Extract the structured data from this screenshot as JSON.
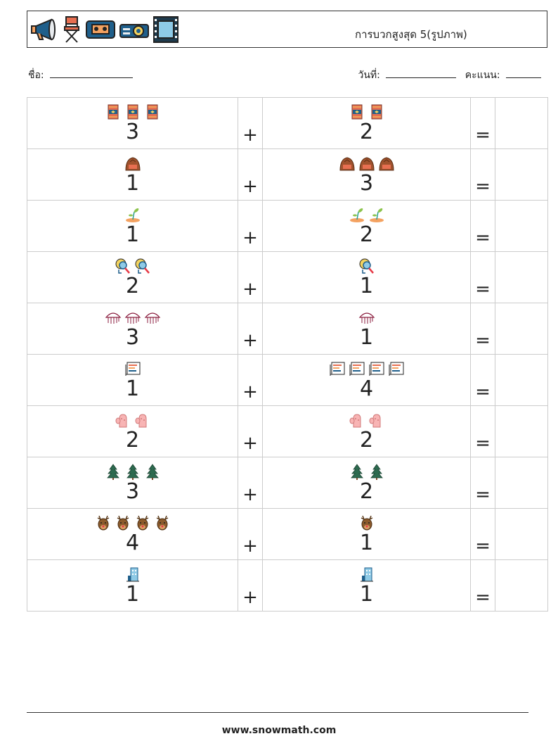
{
  "header": {
    "title": "การบวกสูงสุด 5(รูปภาพ)",
    "icons": [
      "megaphone-icon",
      "directors-chair-icon",
      "videocassette-icon",
      "projector-icon",
      "film-frame-icon"
    ]
  },
  "info": {
    "name_label": "ชื่อ:",
    "date_label": "วันที่:",
    "score_label": "คะแนน:"
  },
  "operators": {
    "plus": "+",
    "equals": "="
  },
  "problems": [
    {
      "a": "3",
      "b": "2",
      "icon": "rug-icon"
    },
    {
      "a": "1",
      "b": "3",
      "icon": "hill-icon"
    },
    {
      "a": "1",
      "b": "2",
      "icon": "sprout-icon"
    },
    {
      "a": "2",
      "b": "1",
      "icon": "magnifier-bulb-icon"
    },
    {
      "a": "3",
      "b": "1",
      "icon": "jellyfish-icon"
    },
    {
      "a": "1",
      "b": "4",
      "icon": "chart-board-icon"
    },
    {
      "a": "2",
      "b": "2",
      "icon": "mitten-icon"
    },
    {
      "a": "3",
      "b": "2",
      "icon": "pine-tree-icon"
    },
    {
      "a": "4",
      "b": "1",
      "icon": "reindeer-icon"
    },
    {
      "a": "1",
      "b": "1",
      "icon": "building-icon"
    }
  ],
  "footer": {
    "url": "www.snowmath.com"
  }
}
